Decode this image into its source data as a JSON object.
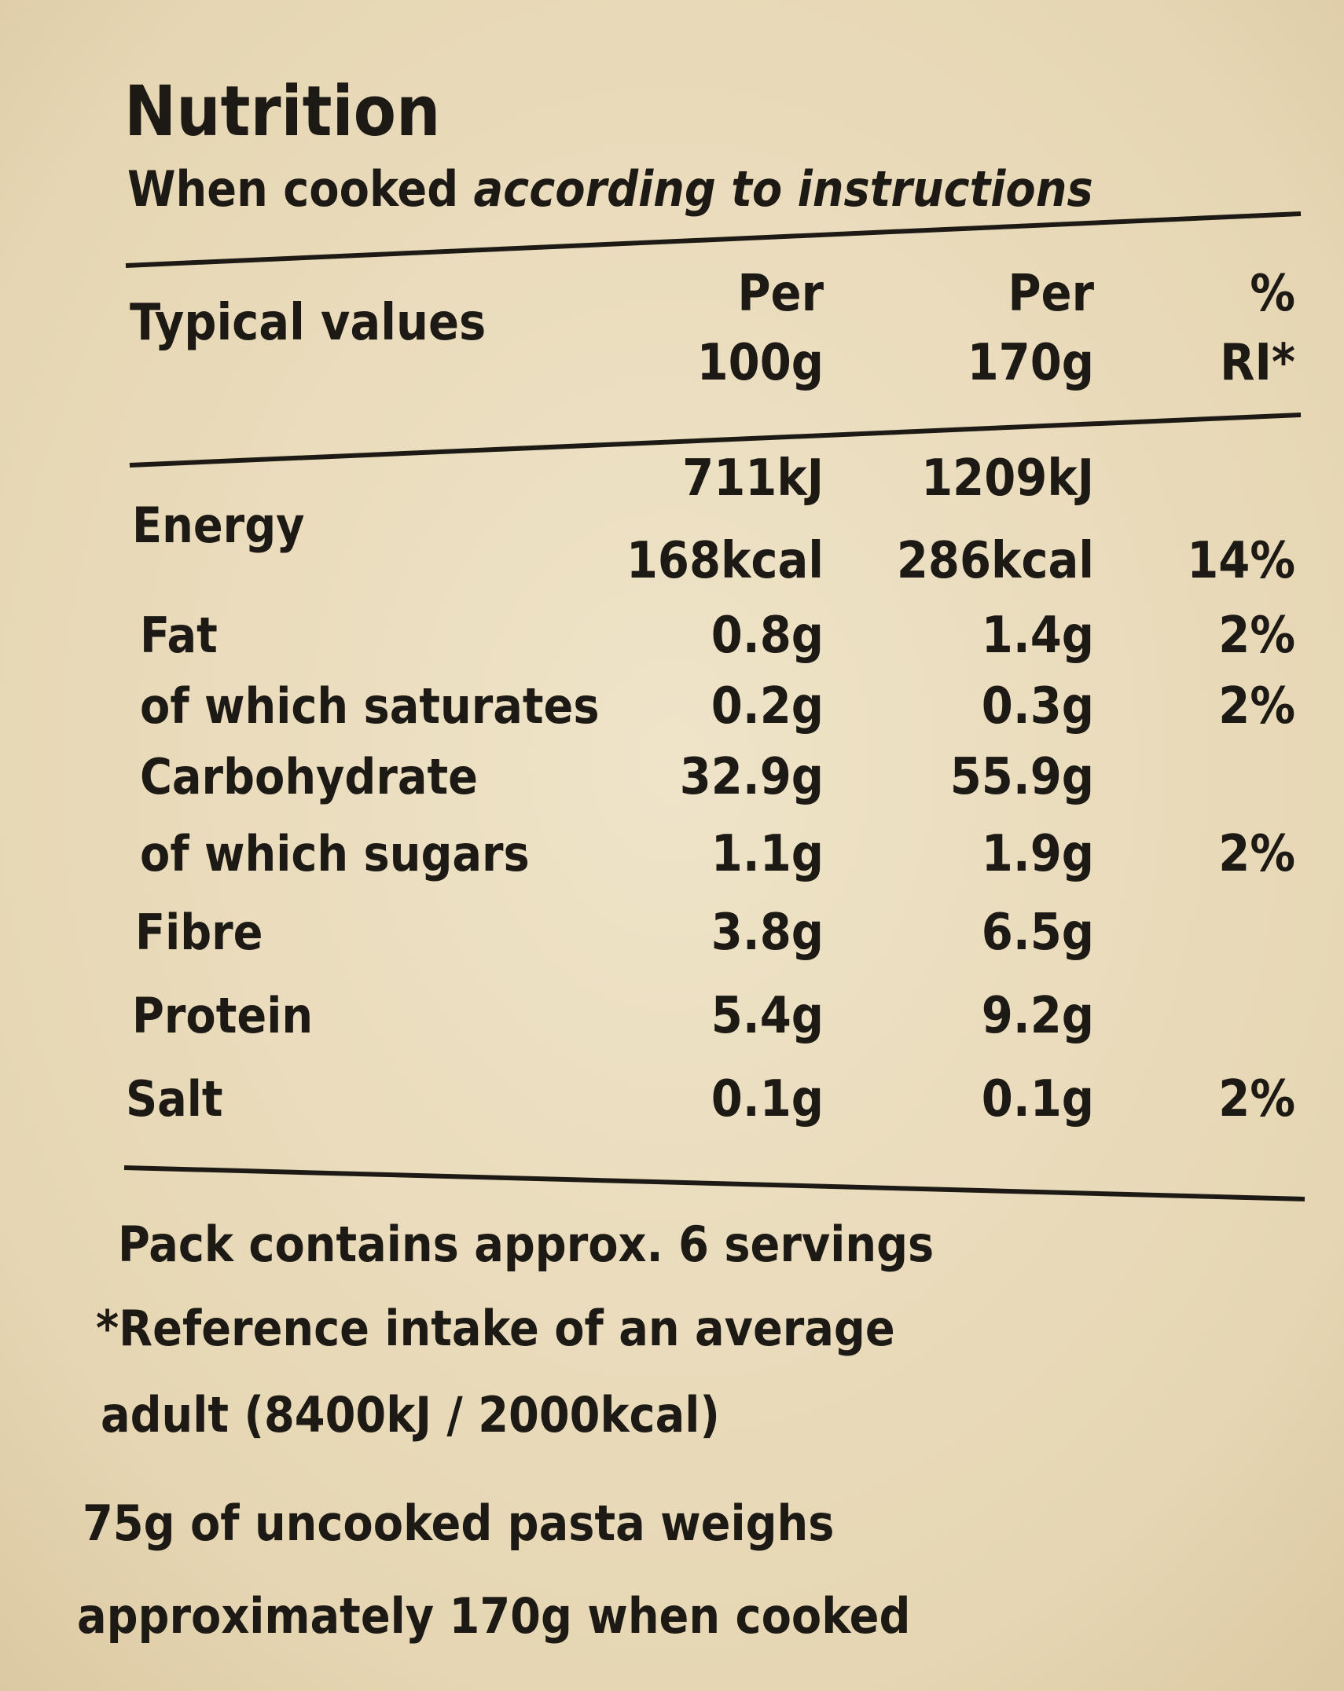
{
  "header": {
    "title": "Nutrition",
    "subtitle": [
      "When cooked",
      "according to instructions"
    ]
  },
  "table": {
    "columns": {
      "label": "Typical values",
      "per100g": [
        "Per",
        "100g"
      ],
      "per170g": [
        "Per",
        "170g"
      ],
      "ri": [
        "%",
        "RI*"
      ]
    },
    "rows": [
      {
        "label": "Energy",
        "per100g": [
          "711kJ",
          "168kcal"
        ],
        "per170g": [
          "1209kJ",
          "286kcal"
        ],
        "ri": "14%"
      },
      {
        "label": "Fat",
        "per100g": "0.8g",
        "per170g": "1.4g",
        "ri": "2%"
      },
      {
        "label": "of which saturates",
        "per100g": "0.2g",
        "per170g": "0.3g",
        "ri": "2%"
      },
      {
        "label": "Carbohydrate",
        "per100g": "32.9g",
        "per170g": "55.9g"
      },
      {
        "label": "of which sugars",
        "per100g": "1.1g",
        "per170g": "1.9g",
        "ri": "2%"
      },
      {
        "label": "Fibre",
        "per100g": "3.8g",
        "per170g": "6.5g"
      },
      {
        "label": "Protein",
        "per100g": "5.4g",
        "per170g": "9.2g"
      },
      {
        "label": "Salt",
        "per100g": "0.1g",
        "per170g": "0.1g",
        "ri": "2%"
      }
    ]
  },
  "footer": {
    "notes": [
      [
        "Pack contains approx. 6 servings"
      ],
      [
        "*Reference intake of an average",
        "adult (8400kJ / 2000kcal)"
      ],
      [
        "75g of uncooked pasta weighs",
        "approximately 170g when cooked"
      ]
    ]
  }
}
